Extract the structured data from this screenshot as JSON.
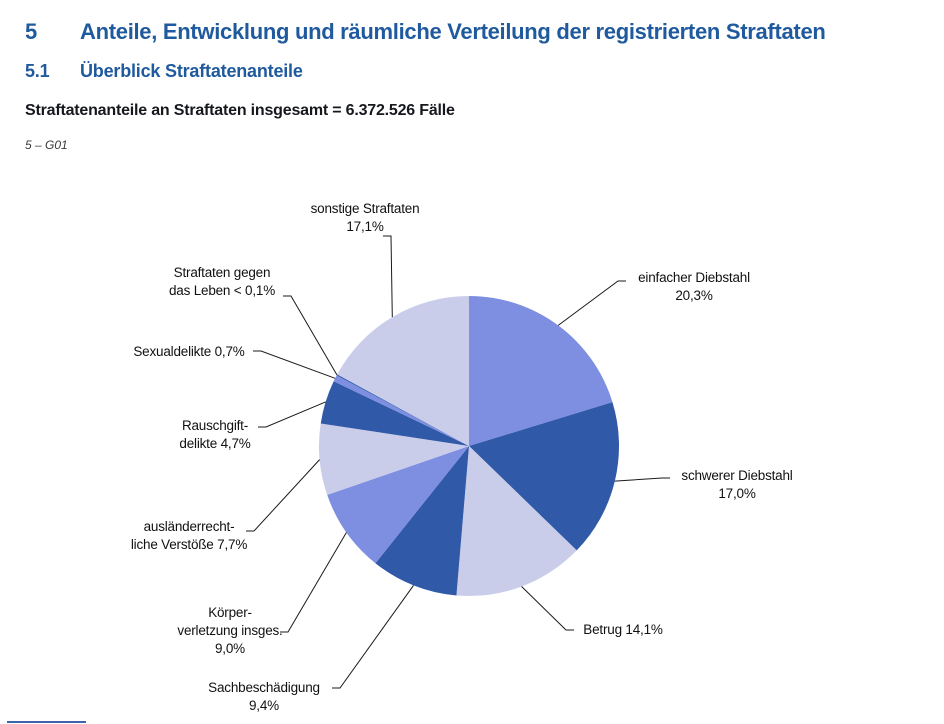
{
  "page": {
    "section_number": "5",
    "section_title": "Anteile, Entwicklung und räumliche Verteilung der registrierten Straftaten",
    "subsection_number": "5.1",
    "subsection_title": "Überblick Straftatenanteile",
    "chart_title": "Straftatenanteile an Straftaten insgesamt = 6.372.526 Fälle",
    "figure_code": "5 – G01"
  },
  "colors": {
    "heading_blue": "#205A9E",
    "title_dark": "#16181D",
    "pie_periwinkle": "#7E8FE2",
    "pie_dark_blue": "#3059A8",
    "pie_lavender": "#C9CDEA",
    "leader_line": "#1A1A1A",
    "footer_rule_blue": "#3D64AD"
  },
  "chart_data": {
    "type": "pie",
    "title": "Straftatenanteile an Straftaten insgesamt = 6.372.526 Fälle",
    "total_cases": "6.372.526",
    "total_cases_unit": "Fälle",
    "start_angle_deg": 0,
    "direction": "clockwise",
    "legend_position": "callout-labels",
    "slices": [
      {
        "name": "einfacher Diebstahl",
        "value_pct": 20.3,
        "display_pct": "20,3%",
        "color": "#7E8FE2",
        "label_lines": [
          "einfacher Diebstahl",
          "20,3%"
        ]
      },
      {
        "name": "schwerer Diebstahl",
        "value_pct": 17.0,
        "display_pct": "17,0%",
        "color": "#3059A8",
        "label_lines": [
          "schwerer Diebstahl",
          "17,0%"
        ]
      },
      {
        "name": "Betrug",
        "value_pct": 14.1,
        "display_pct": "14,1%",
        "color": "#C9CDEA",
        "label_lines": [
          "Betrug 14,1%"
        ]
      },
      {
        "name": "Sachbeschädigung",
        "value_pct": 9.4,
        "display_pct": "9,4%",
        "color": "#3059A8",
        "label_lines": [
          "Sachbeschädigung",
          "9,4%"
        ]
      },
      {
        "name": "Körperverletzung insgesamt",
        "value_pct": 9.0,
        "display_pct": "9,0%",
        "color": "#7E8FE2",
        "label_lines": [
          "Körper-",
          "verletzung insges.",
          "9,0%"
        ]
      },
      {
        "name": "ausländerrechtliche Verstöße",
        "value_pct": 7.7,
        "display_pct": "7,7%",
        "color": "#C9CDEA",
        "label_lines": [
          "ausländerrecht-",
          "liche Verstöße 7,7%"
        ]
      },
      {
        "name": "Rauschgiftdelikte",
        "value_pct": 4.7,
        "display_pct": "4,7%",
        "color": "#3059A8",
        "label_lines": [
          "Rauschgift-",
          "delikte 4,7%"
        ]
      },
      {
        "name": "Sexualdelikte",
        "value_pct": 0.7,
        "display_pct": "0,7%",
        "color": "#7E8FE2",
        "label_lines": [
          "Sexualdelikte 0,7%"
        ]
      },
      {
        "name": "Straftaten gegen das Leben",
        "value_pct": 0.05,
        "display_pct": "< 0,1%",
        "color": "#3059A8",
        "label_lines": [
          "Straftaten gegen",
          "das Leben < 0,1%"
        ]
      },
      {
        "name": "sonstige Straftaten",
        "value_pct": 17.1,
        "display_pct": "17,1%",
        "color": "#C9CDEA",
        "label_lines": [
          "sonstige Straftaten",
          "17,1%"
        ]
      }
    ]
  }
}
